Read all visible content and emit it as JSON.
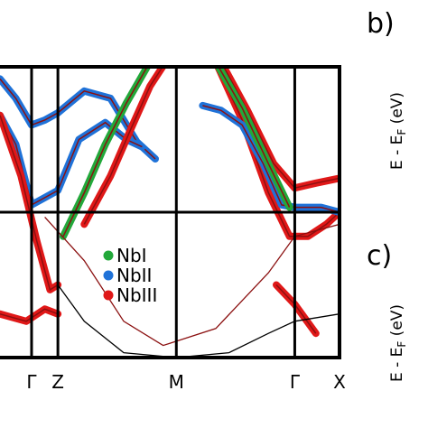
{
  "chart_data": {
    "type": "line",
    "title": "",
    "xlabel": "",
    "ylabel": "",
    "x_ticks": [
      "Γ",
      "Z",
      "M",
      "Γ",
      "X"
    ],
    "x_tick_positions": [
      0.0,
      0.1,
      0.55,
      1.0,
      1.17
    ],
    "xlim": [
      -0.12,
      1.17
    ],
    "ylim": [
      -0.6,
      0.6
    ],
    "grid_y": [
      0.0
    ],
    "colors": {
      "band": "#8b1010",
      "thin": "#000000",
      "NbI": "#22a83a",
      "NbII": "#1f72d8",
      "NbIII": "#e01818"
    },
    "legend": {
      "position": "center",
      "entries": [
        "NbI",
        "NbII",
        "NbIII"
      ]
    },
    "series": [
      {
        "name": "NbII",
        "x": [
          -0.12,
          -0.06,
          0.0,
          0.05,
          0.1,
          0.2,
          0.3,
          0.4,
          0.47
        ],
        "y": [
          0.55,
          0.47,
          0.36,
          0.38,
          0.41,
          0.5,
          0.47,
          0.29,
          0.22
        ]
      },
      {
        "name": "NbII",
        "x": [
          -0.12,
          -0.06,
          0.0,
          0.05,
          0.1,
          0.18,
          0.28,
          0.36,
          0.42
        ],
        "y": [
          0.4,
          0.28,
          0.03,
          0.06,
          0.09,
          0.3,
          0.37,
          0.3,
          0.27
        ]
      },
      {
        "name": "NbIII",
        "x": [
          0.2,
          0.3,
          0.38,
          0.45,
          0.51
        ],
        "y": [
          -0.05,
          0.15,
          0.35,
          0.52,
          0.62
        ]
      },
      {
        "name": "NbIII",
        "x": [
          -0.12,
          -0.04,
          0.02,
          0.07,
          0.1
        ],
        "y": [
          0.4,
          0.15,
          -0.12,
          -0.32,
          -0.3
        ]
      },
      {
        "name": "NbI",
        "x": [
          0.12,
          0.2,
          0.28,
          0.36,
          0.45
        ],
        "y": [
          -0.1,
          0.08,
          0.28,
          0.45,
          0.62
        ]
      },
      {
        "name": "NbIII",
        "x": [
          0.7,
          0.8,
          0.9,
          0.98,
          1.05,
          1.12,
          1.17
        ],
        "y": [
          0.62,
          0.38,
          0.08,
          -0.1,
          -0.1,
          -0.05,
          0.0
        ]
      },
      {
        "name": "NbIII",
        "x": [
          0.72,
          0.82,
          0.92,
          1.0,
          1.08,
          1.17
        ],
        "y": [
          0.62,
          0.42,
          0.2,
          0.1,
          0.12,
          0.14
        ]
      },
      {
        "name": "NbII",
        "x": [
          0.65,
          0.72,
          0.8,
          0.88,
          0.95,
          1.0,
          1.1,
          1.17
        ],
        "y": [
          0.44,
          0.42,
          0.36,
          0.2,
          0.03,
          0.02,
          0.02,
          0.0
        ]
      },
      {
        "name": "NbI",
        "x": [
          0.7,
          0.8,
          0.9,
          0.98
        ],
        "y": [
          0.62,
          0.43,
          0.2,
          0.02
        ]
      },
      {
        "name": "NbIII",
        "x": [
          -0.12,
          -0.02,
          0.05,
          0.1
        ],
        "y": [
          -0.42,
          -0.45,
          -0.4,
          -0.42
        ]
      },
      {
        "name": "NbIII",
        "x": [
          0.93,
          1.0,
          1.08
        ],
        "y": [
          -0.3,
          -0.38,
          -0.5
        ]
      },
      {
        "name": "",
        "x": [
          0.1,
          0.2,
          0.35,
          0.55,
          0.75,
          0.9,
          1.0,
          1.17
        ],
        "y": [
          -0.3,
          -0.45,
          -0.58,
          -0.6,
          -0.58,
          -0.5,
          -0.45,
          -0.42
        ]
      },
      {
        "name": "",
        "x": [
          0.05,
          0.2,
          0.35,
          0.5,
          0.7,
          0.9,
          1.0,
          1.17
        ],
        "y": [
          -0.02,
          -0.2,
          -0.45,
          -0.55,
          -0.48,
          -0.25,
          -0.1,
          -0.05
        ]
      }
    ]
  },
  "side_labels": {
    "b_panel": "b)",
    "c_panel": "c)",
    "y_label_b": "E - E",
    "y_label_c": "E - E",
    "y_label_sub": "F",
    "y_unit": " (eV)"
  }
}
